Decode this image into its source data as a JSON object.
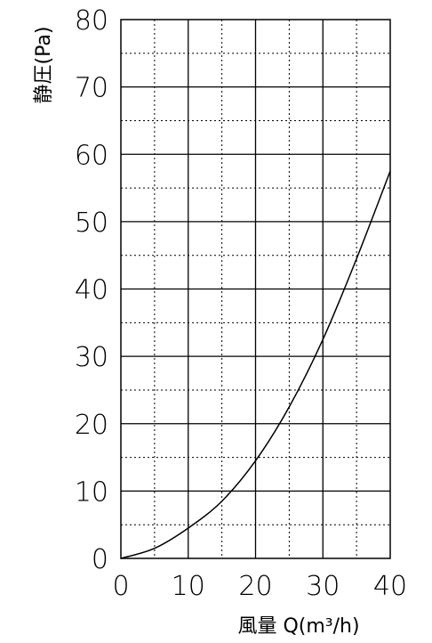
{
  "chart_data": {
    "type": "line",
    "xlabel": "風量 Q(m³/h)",
    "ylabel": "静圧(Pa)",
    "xlim": [
      0,
      40
    ],
    "ylim": [
      0,
      80
    ],
    "x_ticks": [
      "0",
      "10",
      "20",
      "30",
      "40"
    ],
    "y_ticks": [
      "0",
      "10",
      "20",
      "30",
      "40",
      "50",
      "60",
      "70",
      "80"
    ],
    "grid": "major solid, minor dotted",
    "series": [
      {
        "x": [
          0,
          5,
          10,
          15,
          20,
          25,
          30,
          35,
          40
        ],
        "y": [
          0,
          1.5,
          4.5,
          8.5,
          14.5,
          22.5,
          32.5,
          44.5,
          57.5
        ]
      }
    ]
  }
}
